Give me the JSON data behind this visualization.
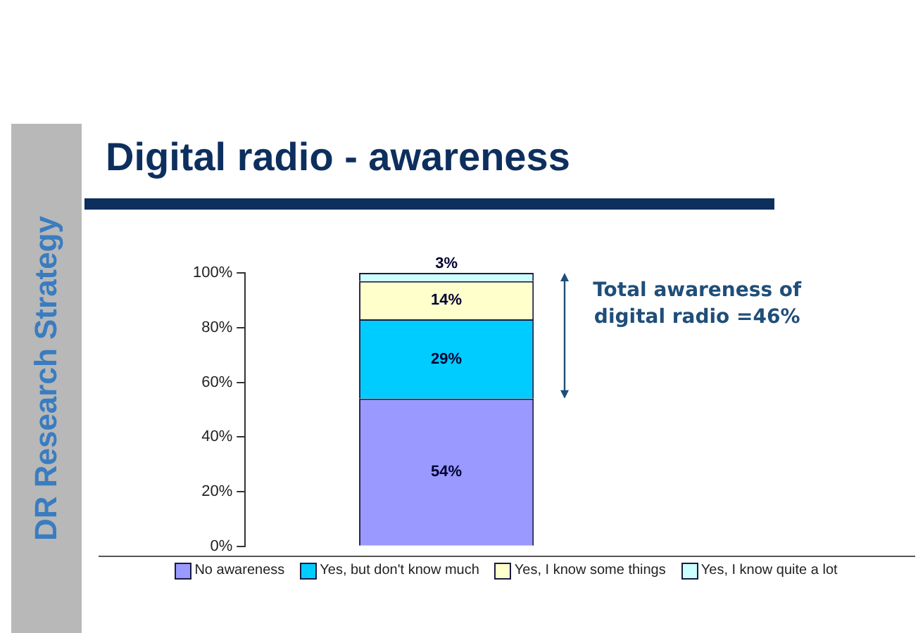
{
  "chart_data": {
    "type": "bar",
    "title": "Digital radio - awareness",
    "stacked": true,
    "categories": [
      null
    ],
    "series": [
      {
        "name": "No awareness",
        "color": "#9999ff",
        "values": [
          54
        ],
        "value_labels": [
          "54%"
        ]
      },
      {
        "name": "Yes, but don't know much",
        "color": "#00ccff",
        "values": [
          29
        ],
        "value_labels": [
          "29%"
        ]
      },
      {
        "name": "Yes, I know some things",
        "color": "#ffffcc",
        "values": [
          14
        ],
        "value_labels": [
          "14%"
        ]
      },
      {
        "name": "Yes, I know quite a lot",
        "color": "#ccffff",
        "values": [
          3
        ],
        "value_labels": [
          "3%"
        ]
      }
    ],
    "ylim": [
      0,
      100
    ],
    "yticks": [
      {
        "value": 0,
        "label": "0%"
      },
      {
        "value": 20,
        "label": "20%"
      },
      {
        "value": 40,
        "label": "40%"
      },
      {
        "value": 60,
        "label": "60%"
      },
      {
        "value": 80,
        "label": "80%"
      },
      {
        "value": 100,
        "label": "100%"
      }
    ],
    "grid": false,
    "legend": "bottom",
    "tick_labels": "y",
    "annotations": [
      "DR Research Strategy",
      "Total awareness of digital radio =46%"
    ]
  }
}
